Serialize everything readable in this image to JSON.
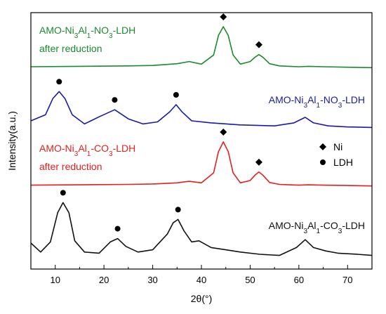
{
  "chart_data": {
    "type": "line",
    "xlabel": "2θ(°)",
    "ylabel": "Intensity(a.u.)",
    "xlim": [
      5,
      75
    ],
    "x_ticks": [
      10,
      20,
      30,
      40,
      50,
      60,
      70
    ],
    "y_ticks_labeled": false,
    "grid": false,
    "legend": {
      "position": "middle-right",
      "entries": [
        {
          "marker": "diamond",
          "label": "Ni"
        },
        {
          "marker": "circle",
          "label": "LDH"
        }
      ]
    },
    "series": [
      {
        "label_parts": [
          {
            "t": "AMO-Ni"
          },
          {
            "t": "3",
            "sub": true
          },
          {
            "t": "Al"
          },
          {
            "t": "1",
            "sub": true
          },
          {
            "t": "-NO"
          },
          {
            "t": "3",
            "sub": true
          },
          {
            "t": "-LDH"
          }
        ],
        "label_line2": "after reduction",
        "label_anchor": "top-left",
        "color": "#1a8a2e",
        "x": [
          5,
          15,
          25,
          30,
          35,
          37.5,
          40,
          42.5,
          43.5,
          44.5,
          45.5,
          46.5,
          48,
          50,
          51,
          51.8,
          52.6,
          54,
          56,
          58,
          60,
          62,
          65,
          70,
          75
        ],
        "y": [
          8,
          9,
          10,
          11,
          15,
          20,
          14,
          35,
          80,
          100,
          80,
          35,
          14,
          20,
          30,
          36,
          30,
          15,
          10,
          9,
          8,
          9,
          8,
          7,
          6
        ],
        "markers": [
          {
            "x": 44.5,
            "y": 100,
            "shape": "diamond"
          },
          {
            "x": 51.8,
            "y": 36,
            "shape": "diamond"
          }
        ]
      },
      {
        "label_parts": [
          {
            "t": "AMO-Ni"
          },
          {
            "t": "3",
            "sub": true
          },
          {
            "t": "Al"
          },
          {
            "t": "1",
            "sub": true
          },
          {
            "t": "-NO"
          },
          {
            "t": "3",
            "sub": true
          },
          {
            "t": "-LDH"
          }
        ],
        "label_anchor": "right",
        "color": "#1a1aaa",
        "x": [
          5,
          8,
          9.5,
          10.8,
          12,
          13.5,
          16,
          19,
          22.2,
          25,
          28,
          31,
          33.5,
          34.8,
          36,
          38,
          42,
          48,
          55,
          59,
          61.3,
          63,
          66,
          70,
          75
        ],
        "y": [
          18,
          30,
          62,
          76,
          62,
          30,
          12,
          26,
          40,
          22,
          12,
          16,
          36,
          50,
          36,
          18,
          14,
          10,
          8,
          14,
          25,
          14,
          8,
          6,
          5
        ],
        "markers": [
          {
            "x": 10.8,
            "y": 76,
            "shape": "circle"
          },
          {
            "x": 22.2,
            "y": 40,
            "shape": "circle"
          },
          {
            "x": 34.8,
            "y": 50,
            "shape": "circle"
          }
        ]
      },
      {
        "label_parts": [
          {
            "t": "AMO-Ni"
          },
          {
            "t": "3",
            "sub": true
          },
          {
            "t": "Al"
          },
          {
            "t": "1",
            "sub": true
          },
          {
            "t": "-CO"
          },
          {
            "t": "3",
            "sub": true
          },
          {
            "t": "-LDH"
          }
        ],
        "label_line2": "after reduction",
        "label_anchor": "top-left",
        "color": "#e61e1e",
        "x": [
          5,
          15,
          25,
          30,
          35,
          37.5,
          40,
          42.5,
          43.5,
          44.5,
          45.5,
          46.5,
          48,
          50,
          51,
          51.8,
          52.6,
          54,
          56,
          58,
          60,
          62,
          65,
          70,
          75
        ],
        "y": [
          8,
          9,
          10,
          11,
          14,
          18,
          14,
          40,
          95,
          120,
          95,
          40,
          14,
          20,
          34,
          42,
          34,
          15,
          10,
          9,
          8,
          9,
          8,
          7,
          6
        ],
        "markers": [
          {
            "x": 44.5,
            "y": 120,
            "shape": "diamond"
          },
          {
            "x": 51.8,
            "y": 42,
            "shape": "diamond"
          }
        ]
      },
      {
        "label_parts": [
          {
            "t": "AMO-Ni"
          },
          {
            "t": "3",
            "sub": true
          },
          {
            "t": "Al"
          },
          {
            "t": "1",
            "sub": true
          },
          {
            "t": "-CO"
          },
          {
            "t": "3",
            "sub": true
          },
          {
            "t": "-LDH"
          }
        ],
        "label_anchor": "right",
        "color": "#111111",
        "x": [
          5,
          7,
          9,
          10.5,
          11.6,
          12.8,
          14,
          16,
          19,
          21.3,
          22.8,
          24.5,
          27,
          30,
          33,
          34.2,
          35.2,
          36.4,
          38,
          39.5,
          42,
          45,
          48,
          52,
          56,
          59.5,
          61.3,
          63,
          65.5,
          68,
          72,
          75
        ],
        "y": [
          30,
          14,
          32,
          84,
          102,
          84,
          34,
          14,
          12,
          32,
          38,
          24,
          14,
          18,
          46,
          66,
          72,
          52,
          32,
          34,
          22,
          18,
          14,
          10,
          8,
          22,
          36,
          22,
          16,
          12,
          10,
          8
        ],
        "markers": [
          {
            "x": 11.6,
            "y": 102,
            "shape": "circle"
          },
          {
            "x": 22.8,
            "y": 38,
            "shape": "circle"
          },
          {
            "x": 35.2,
            "y": 72,
            "shape": "circle"
          }
        ]
      }
    ]
  }
}
